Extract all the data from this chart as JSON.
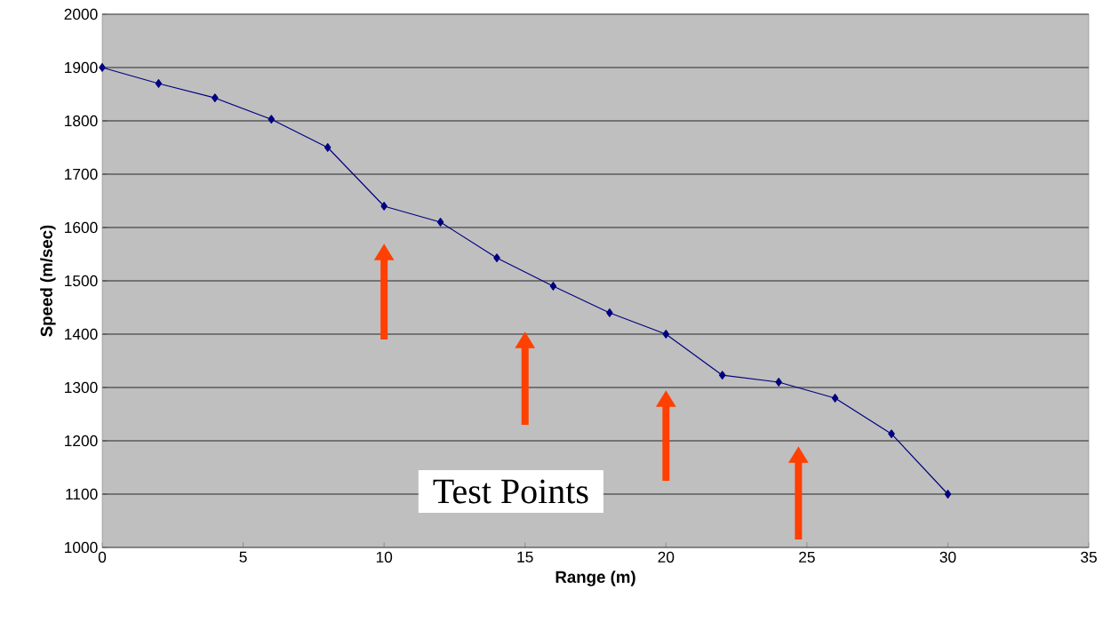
{
  "chart_data": {
    "type": "line",
    "xlabel": "Range (m)",
    "ylabel": "Speed (m/sec)",
    "x": [
      0,
      2,
      4,
      6,
      8,
      10,
      12,
      14,
      16,
      18,
      20,
      22,
      24,
      26,
      28,
      30
    ],
    "series": [
      {
        "color": "#000080",
        "values": [
          1900,
          1870,
          1843,
          1803,
          1750,
          1640,
          1610,
          1543,
          1490,
          1440,
          1400,
          1323,
          1310,
          1280,
          1213,
          1100
        ]
      }
    ],
    "xlim": [
      0,
      35
    ],
    "xticks": [
      0,
      5,
      10,
      15,
      20,
      25,
      30,
      35
    ],
    "ylim": [
      1000,
      2000
    ],
    "yticks": [
      1000,
      1100,
      1200,
      1300,
      1400,
      1500,
      1600,
      1700,
      1800,
      1900,
      2000
    ],
    "grid": "y",
    "marker": "diamond",
    "annotations": [
      "Test Points"
    ]
  }
}
